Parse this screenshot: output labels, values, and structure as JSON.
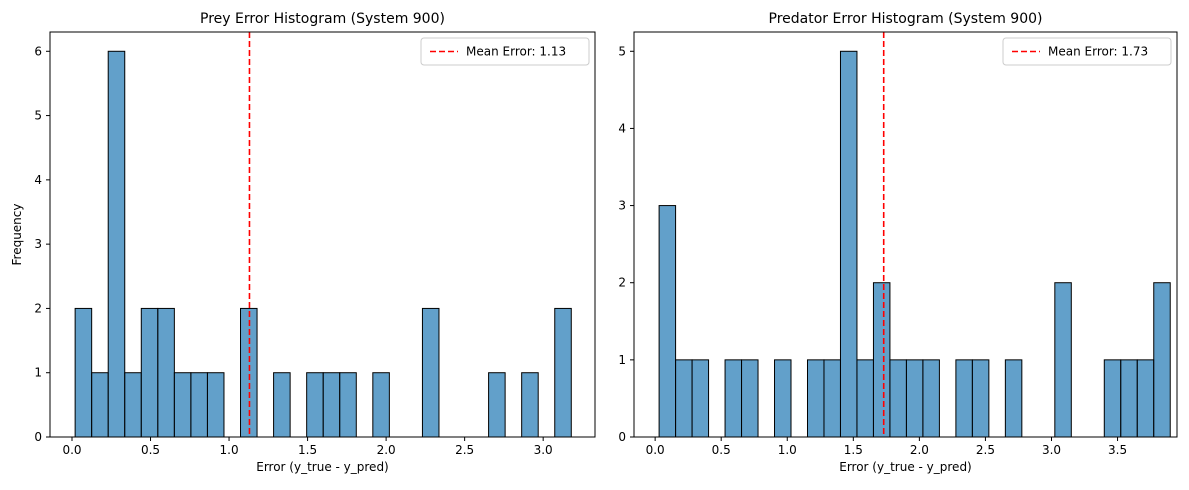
{
  "colors": {
    "bar_fill": "#1f77b4",
    "bar_edge": "#000000",
    "mean_line": "#ff0000"
  },
  "chart_data": [
    {
      "type": "bar",
      "title": "Prey Error Histogram (System 900)",
      "xlabel": "Error (y_true - y_pred)",
      "ylabel": "Frequency",
      "xlim": [
        -0.14,
        3.33
      ],
      "ylim": [
        0,
        6.3
      ],
      "xticks": [
        0.0,
        0.5,
        1.0,
        1.5,
        2.0,
        2.5,
        3.0
      ],
      "xtick_labels": [
        "0.0",
        "0.5",
        "1.0",
        "1.5",
        "2.0",
        "2.5",
        "3.0"
      ],
      "yticks": [
        0,
        1,
        2,
        3,
        4,
        5,
        6
      ],
      "ytick_labels": [
        "0",
        "1",
        "2",
        "3",
        "4",
        "5",
        "6"
      ],
      "bin_start": 0.02,
      "bin_width": 0.1053,
      "counts": [
        2,
        1,
        6,
        1,
        2,
        2,
        1,
        1,
        1,
        0,
        2,
        0,
        1,
        0,
        1,
        1,
        1,
        0,
        1,
        0,
        0,
        2,
        0,
        0,
        0,
        1,
        0,
        1,
        0,
        2
      ],
      "mean_line": {
        "value": 1.13,
        "label": "Mean Error: 1.13"
      },
      "grid": false,
      "legend_position": "top-right"
    },
    {
      "type": "bar",
      "title": "Predator Error Histogram (System 900)",
      "xlabel": "Error (y_true - y_pred)",
      "ylabel": "",
      "xlim": [
        -0.16,
        3.95
      ],
      "ylim": [
        0,
        5.25
      ],
      "xticks": [
        0.0,
        0.5,
        1.0,
        1.5,
        2.0,
        2.5,
        3.0,
        3.5
      ],
      "xtick_labels": [
        "0.0",
        "0.5",
        "1.0",
        "1.5",
        "2.0",
        "2.5",
        "3.0",
        "3.5"
      ],
      "yticks": [
        0,
        1,
        2,
        3,
        4,
        5
      ],
      "ytick_labels": [
        "0",
        "1",
        "2",
        "3",
        "4",
        "5"
      ],
      "bin_start": 0.03,
      "bin_width": 0.1248,
      "counts": [
        3,
        1,
        1,
        0,
        1,
        1,
        0,
        1,
        0,
        1,
        1,
        5,
        1,
        2,
        1,
        1,
        1,
        0,
        1,
        1,
        0,
        1,
        0,
        0,
        2,
        0,
        0,
        1,
        1,
        1,
        2
      ],
      "mean_line": {
        "value": 1.73,
        "label": "Mean Error: 1.73"
      },
      "grid": false,
      "legend_position": "top-right"
    }
  ]
}
